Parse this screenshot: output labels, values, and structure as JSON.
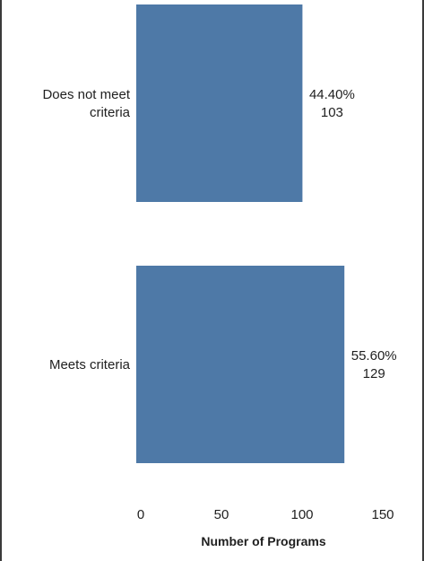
{
  "chart_data": {
    "type": "bar",
    "orientation": "horizontal",
    "categories": [
      "Does not meet criteria",
      "Meets criteria"
    ],
    "category_label_lines": [
      [
        "Does not meet",
        "criteria"
      ],
      [
        "Meets criteria"
      ]
    ],
    "values": [
      103,
      129
    ],
    "percent_labels": [
      "44.40%",
      "55.60%"
    ],
    "value_labels": [
      "103",
      "129"
    ],
    "xlabel": "Number of Programs",
    "xticks": [
      0,
      50,
      100,
      150
    ],
    "xlim": [
      0,
      165
    ],
    "bar_color": "#4e79a7",
    "grid": false
  }
}
